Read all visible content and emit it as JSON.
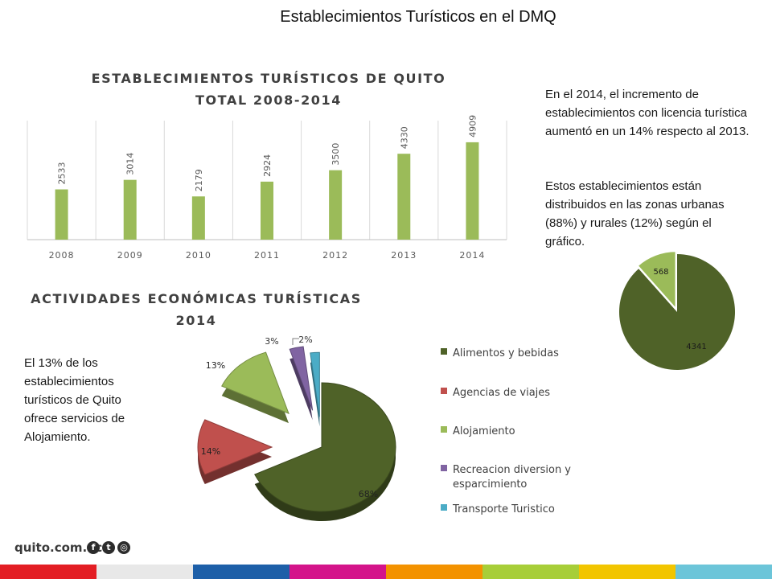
{
  "page": {
    "title": "Establecimientos Turísticos en el DMQ"
  },
  "text": {
    "para_2014": "En el 2014, el incremento de establecimientos con licencia turística aumentó en un 14% respecto al 2013.",
    "para_dist": "Estos establecimientos están distribuidos en las zonas urbanas (88%) y rurales (12%) según el gráfico.",
    "para_aloj": "El 13% de los establecimientos turísticos de Quito ofrece servicios de Alojamiento."
  },
  "footer": {
    "logo": "quito.com.ec",
    "icons": [
      "facebook-icon",
      "twitter-icon",
      "instagram-icon"
    ]
  },
  "chart_data": [
    {
      "type": "bar",
      "title_line1": "ESTABLECIMIENTOS TURÍSTICOS DE QUITO",
      "title_line2": "TOTAL 2008-2014",
      "categories": [
        "2008",
        "2009",
        "2010",
        "2011",
        "2012",
        "2013",
        "2014"
      ],
      "values": [
        2533,
        3014,
        2179,
        2924,
        3500,
        4330,
        4909
      ],
      "ylim": [
        0,
        6000
      ],
      "color": "#9bbb59",
      "grid": "vertical"
    },
    {
      "type": "pie",
      "title_line1": "ACTIVIDADES ECONÓMICAS TURÍSTICAS",
      "title_line2": "2014",
      "style": "3d-exploded",
      "slices": [
        {
          "label": "Alimentos y bebidas",
          "value": 68,
          "display": "68%",
          "color": "#4f6228"
        },
        {
          "label": "Agencias de viajes",
          "value": 14,
          "display": "14%",
          "color": "#c0504d"
        },
        {
          "label": "Alojamiento",
          "value": 13,
          "display": "13%",
          "color": "#9bbb59"
        },
        {
          "label": "Recreacion diversion y esparcimiento",
          "value": 3,
          "display": "3%",
          "color": "#8064a2"
        },
        {
          "label": "Transporte Turistico",
          "value": 2,
          "display": "2%",
          "color": "#4bacc6"
        }
      ],
      "legend": "right"
    },
    {
      "type": "pie",
      "slices": [
        {
          "label": "",
          "value": 4341,
          "display": "4341",
          "color": "#4f6228"
        },
        {
          "label": "",
          "value": 568,
          "display": "568",
          "color": "#9bbb59"
        }
      ]
    }
  ],
  "colors": {
    "strip": [
      "#e31e24",
      "#e8e8e8",
      "#1d5fa8",
      "#d4148a",
      "#f39200",
      "#a7ce38",
      "#f2c500",
      "#6cc5d9"
    ]
  }
}
